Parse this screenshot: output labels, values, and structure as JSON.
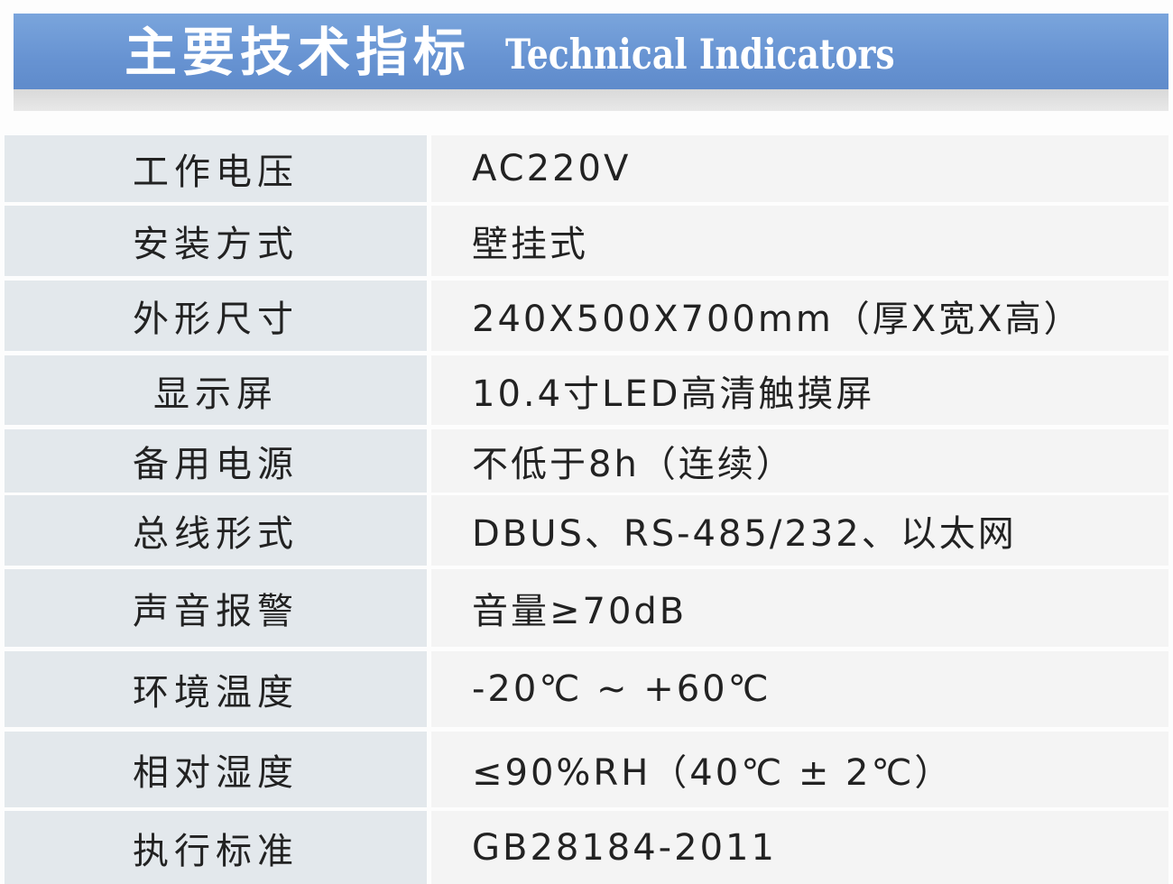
{
  "header": {
    "title_cn": "主要技术指标",
    "title_en": "Technical Indicators",
    "color": "#6793d2"
  },
  "rows": [
    {
      "label": "工作电压",
      "value": "AC220V"
    },
    {
      "label": "安装方式",
      "value": "壁挂式"
    },
    {
      "label": "外形尺寸",
      "value": "240X500X700mm（厚X宽X高）"
    },
    {
      "label": "显示屏",
      "value": "10.4寸LED高清触摸屏"
    },
    {
      "label": "备用电源",
      "value": "不低于8h（连续）"
    },
    {
      "label": "总线形式",
      "value": "DBUS、RS-485/232、以太网"
    },
    {
      "label": "声音报警",
      "value": "音量≥70dB"
    },
    {
      "label": "环境温度",
      "value": "-20℃ ~ +60℃"
    },
    {
      "label": "相对湿度",
      "value": "≤90%RH（40℃ ± 2℃）"
    },
    {
      "label": "执行标准",
      "value": "GB28184-2011"
    }
  ]
}
